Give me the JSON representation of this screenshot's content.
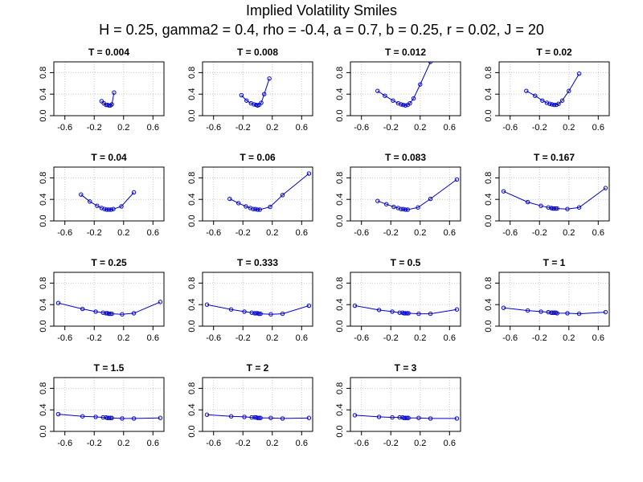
{
  "title": "Implied Volatility Smiles",
  "subtitle": "H = 0.25, gamma2 = 0.4, rho = -0.4, a = 0.7, b = 0.25, r = 0.02, J = 20",
  "colors": {
    "series": "#0000cc",
    "grid": "#c8c8c8",
    "axis": "#000000"
  },
  "chart_data": [
    {
      "type": "line",
      "title": "T = 0.004",
      "xlim": [
        -0.75,
        0.75
      ],
      "ylim": [
        0,
        1.0
      ],
      "xticks": [
        "-0.6",
        "-0.2",
        "0.2",
        "0.6"
      ],
      "yticks": [
        "0.0",
        "0.4",
        "0.8"
      ],
      "grid": true,
      "x": [
        -0.1,
        -0.07,
        -0.04,
        -0.02,
        0.0,
        0.02,
        0.04,
        0.07
      ],
      "y": [
        0.27,
        0.23,
        0.2,
        0.2,
        0.19,
        0.19,
        0.21,
        0.43
      ]
    },
    {
      "type": "line",
      "title": "T = 0.008",
      "xlim": [
        -0.75,
        0.75
      ],
      "ylim": [
        0,
        1.0
      ],
      "xticks": [
        "-0.6",
        "-0.2",
        "0.2",
        "0.6"
      ],
      "yticks": [
        "0.0",
        "0.4",
        "0.8"
      ],
      "grid": true,
      "x": [
        -0.22,
        -0.15,
        -0.09,
        -0.05,
        -0.02,
        0.0,
        0.02,
        0.05,
        0.09,
        0.16
      ],
      "y": [
        0.38,
        0.28,
        0.23,
        0.21,
        0.2,
        0.19,
        0.2,
        0.24,
        0.4,
        0.69
      ]
    },
    {
      "type": "line",
      "title": "T = 0.012",
      "xlim": [
        -0.75,
        0.75
      ],
      "ylim": [
        0,
        1.0
      ],
      "xticks": [
        "-0.6",
        "-0.2",
        "0.2",
        "0.6"
      ],
      "yticks": [
        "0.0",
        "0.4",
        "0.8"
      ],
      "grid": true,
      "x": [
        -0.38,
        -0.28,
        -0.17,
        -0.1,
        -0.06,
        -0.03,
        0.0,
        0.03,
        0.06,
        0.11,
        0.2,
        0.34
      ],
      "y": [
        0.46,
        0.37,
        0.28,
        0.23,
        0.21,
        0.2,
        0.19,
        0.2,
        0.23,
        0.32,
        0.58,
        1.0
      ]
    },
    {
      "type": "line",
      "title": "T = 0.02",
      "xlim": [
        -0.75,
        0.75
      ],
      "ylim": [
        0,
        1.0
      ],
      "xticks": [
        "-0.6",
        "-0.2",
        "0.2",
        "0.6"
      ],
      "yticks": [
        "0.0",
        "0.4",
        "0.8"
      ],
      "grid": true,
      "x": [
        -0.38,
        -0.26,
        -0.16,
        -0.1,
        -0.06,
        -0.03,
        0.0,
        0.03,
        0.06,
        0.11,
        0.2,
        0.34
      ],
      "y": [
        0.46,
        0.37,
        0.28,
        0.24,
        0.22,
        0.21,
        0.2,
        0.2,
        0.22,
        0.28,
        0.46,
        0.78
      ]
    },
    {
      "type": "line",
      "title": "T = 0.04",
      "xlim": [
        -0.75,
        0.75
      ],
      "ylim": [
        0,
        1.0
      ],
      "xticks": [
        "-0.6",
        "-0.2",
        "0.2",
        "0.6"
      ],
      "yticks": [
        "0.0",
        "0.4",
        "0.8"
      ],
      "grid": true,
      "x": [
        -0.38,
        -0.26,
        -0.16,
        -0.1,
        -0.06,
        -0.03,
        0.0,
        0.03,
        0.06,
        0.17,
        0.34
      ],
      "y": [
        0.49,
        0.36,
        0.28,
        0.24,
        0.22,
        0.21,
        0.21,
        0.21,
        0.22,
        0.27,
        0.53
      ]
    },
    {
      "type": "line",
      "title": "T = 0.06",
      "xlim": [
        -0.75,
        0.75
      ],
      "ylim": [
        0,
        1.0
      ],
      "xticks": [
        "-0.6",
        "-0.2",
        "0.2",
        "0.6"
      ],
      "yticks": [
        "0.0",
        "0.4",
        "0.8"
      ],
      "grid": true,
      "x": [
        -0.38,
        -0.26,
        -0.16,
        -0.1,
        -0.06,
        -0.03,
        0.0,
        0.03,
        0.17,
        0.34,
        0.7
      ],
      "y": [
        0.41,
        0.33,
        0.27,
        0.24,
        0.22,
        0.22,
        0.21,
        0.21,
        0.26,
        0.48,
        0.88
      ]
    },
    {
      "type": "line",
      "title": "T = 0.083",
      "xlim": [
        -0.75,
        0.75
      ],
      "ylim": [
        0,
        1.0
      ],
      "xticks": [
        "-0.6",
        "-0.2",
        "0.2",
        "0.6"
      ],
      "yticks": [
        "0.0",
        "0.4",
        "0.8"
      ],
      "grid": true,
      "x": [
        -0.38,
        -0.26,
        -0.16,
        -0.1,
        -0.06,
        -0.03,
        0.0,
        0.03,
        0.17,
        0.34,
        0.7
      ],
      "y": [
        0.37,
        0.31,
        0.26,
        0.24,
        0.22,
        0.22,
        0.21,
        0.21,
        0.25,
        0.41,
        0.77
      ]
    },
    {
      "type": "line",
      "title": "T = 0.167",
      "xlim": [
        -0.75,
        0.75
      ],
      "ylim": [
        0,
        1.0
      ],
      "xticks": [
        "-0.6",
        "-0.2",
        "0.2",
        "0.6"
      ],
      "yticks": [
        "0.0",
        "0.4",
        "0.8"
      ],
      "grid": true,
      "x": [
        -0.69,
        -0.36,
        -0.18,
        -0.08,
        -0.04,
        -0.02,
        0.0,
        0.02,
        0.04,
        0.18,
        0.34,
        0.7
      ],
      "y": [
        0.55,
        0.35,
        0.28,
        0.25,
        0.24,
        0.23,
        0.23,
        0.23,
        0.23,
        0.22,
        0.25,
        0.61
      ]
    },
    {
      "type": "line",
      "title": "T = 0.25",
      "xlim": [
        -0.75,
        0.75
      ],
      "ylim": [
        0,
        1.0
      ],
      "xticks": [
        "-0.6",
        "-0.2",
        "0.2",
        "0.6"
      ],
      "yticks": [
        "0.0",
        "0.4",
        "0.8"
      ],
      "grid": true,
      "x": [
        -0.69,
        -0.36,
        -0.18,
        -0.08,
        -0.04,
        -0.02,
        0.0,
        0.02,
        0.04,
        0.18,
        0.34,
        0.7
      ],
      "y": [
        0.43,
        0.32,
        0.27,
        0.25,
        0.24,
        0.24,
        0.23,
        0.23,
        0.23,
        0.22,
        0.24,
        0.45
      ]
    },
    {
      "type": "line",
      "title": "T = 0.333",
      "xlim": [
        -0.75,
        0.75
      ],
      "ylim": [
        0,
        1.0
      ],
      "xticks": [
        "-0.6",
        "-0.2",
        "0.2",
        "0.6"
      ],
      "yticks": [
        "0.0",
        "0.4",
        "0.8"
      ],
      "grid": true,
      "x": [
        -0.69,
        -0.36,
        -0.18,
        -0.08,
        -0.04,
        -0.02,
        0.0,
        0.02,
        0.04,
        0.18,
        0.34,
        0.7
      ],
      "y": [
        0.4,
        0.31,
        0.27,
        0.25,
        0.24,
        0.24,
        0.24,
        0.23,
        0.23,
        0.22,
        0.23,
        0.38
      ]
    },
    {
      "type": "line",
      "title": "T = 0.5",
      "xlim": [
        -0.75,
        0.75
      ],
      "ylim": [
        0,
        1.0
      ],
      "xticks": [
        "-0.6",
        "-0.2",
        "0.2",
        "0.6"
      ],
      "yticks": [
        "0.0",
        "0.4",
        "0.8"
      ],
      "grid": true,
      "x": [
        -0.69,
        -0.36,
        -0.18,
        -0.08,
        -0.04,
        -0.02,
        0.0,
        0.02,
        0.04,
        0.18,
        0.34,
        0.7
      ],
      "y": [
        0.38,
        0.3,
        0.27,
        0.25,
        0.25,
        0.24,
        0.24,
        0.24,
        0.24,
        0.23,
        0.23,
        0.31
      ]
    },
    {
      "type": "line",
      "title": "T = 1",
      "xlim": [
        -0.75,
        0.75
      ],
      "ylim": [
        0,
        1.0
      ],
      "xticks": [
        "-0.6",
        "-0.2",
        "0.2",
        "0.6"
      ],
      "yticks": [
        "0.0",
        "0.4",
        "0.8"
      ],
      "grid": true,
      "x": [
        -0.69,
        -0.36,
        -0.18,
        -0.08,
        -0.04,
        -0.02,
        0.0,
        0.02,
        0.04,
        0.18,
        0.34,
        0.7
      ],
      "y": [
        0.34,
        0.29,
        0.27,
        0.26,
        0.25,
        0.25,
        0.25,
        0.25,
        0.24,
        0.24,
        0.23,
        0.26
      ]
    },
    {
      "type": "line",
      "title": "T = 1.5",
      "xlim": [
        -0.75,
        0.75
      ],
      "ylim": [
        0,
        1.0
      ],
      "xticks": [
        "-0.6",
        "-0.2",
        "0.2",
        "0.6"
      ],
      "yticks": [
        "0.0",
        "0.4",
        "0.8"
      ],
      "grid": true,
      "x": [
        -0.69,
        -0.36,
        -0.18,
        -0.08,
        -0.04,
        -0.02,
        0.0,
        0.02,
        0.04,
        0.18,
        0.34,
        0.7
      ],
      "y": [
        0.32,
        0.28,
        0.27,
        0.26,
        0.26,
        0.25,
        0.25,
        0.25,
        0.25,
        0.24,
        0.24,
        0.25
      ]
    },
    {
      "type": "line",
      "title": "T = 2",
      "xlim": [
        -0.75,
        0.75
      ],
      "ylim": [
        0,
        1.0
      ],
      "xticks": [
        "-0.6",
        "-0.2",
        "0.2",
        "0.6"
      ],
      "yticks": [
        "0.0",
        "0.4",
        "0.8"
      ],
      "grid": true,
      "x": [
        -0.69,
        -0.36,
        -0.18,
        -0.08,
        -0.04,
        -0.02,
        0.0,
        0.02,
        0.04,
        0.18,
        0.34,
        0.7
      ],
      "y": [
        0.31,
        0.28,
        0.27,
        0.26,
        0.26,
        0.26,
        0.25,
        0.25,
        0.25,
        0.25,
        0.24,
        0.25
      ]
    },
    {
      "type": "line",
      "title": "T = 3",
      "xlim": [
        -0.75,
        0.75
      ],
      "ylim": [
        0,
        1.0
      ],
      "xticks": [
        "-0.6",
        "-0.2",
        "0.2",
        "0.6"
      ],
      "yticks": [
        "0.0",
        "0.4",
        "0.8"
      ],
      "grid": true,
      "x": [
        -0.69,
        -0.36,
        -0.18,
        -0.08,
        -0.04,
        -0.02,
        0.0,
        0.02,
        0.04,
        0.18,
        0.34,
        0.7
      ],
      "y": [
        0.3,
        0.27,
        0.26,
        0.26,
        0.26,
        0.25,
        0.25,
        0.25,
        0.25,
        0.25,
        0.24,
        0.24
      ]
    }
  ]
}
